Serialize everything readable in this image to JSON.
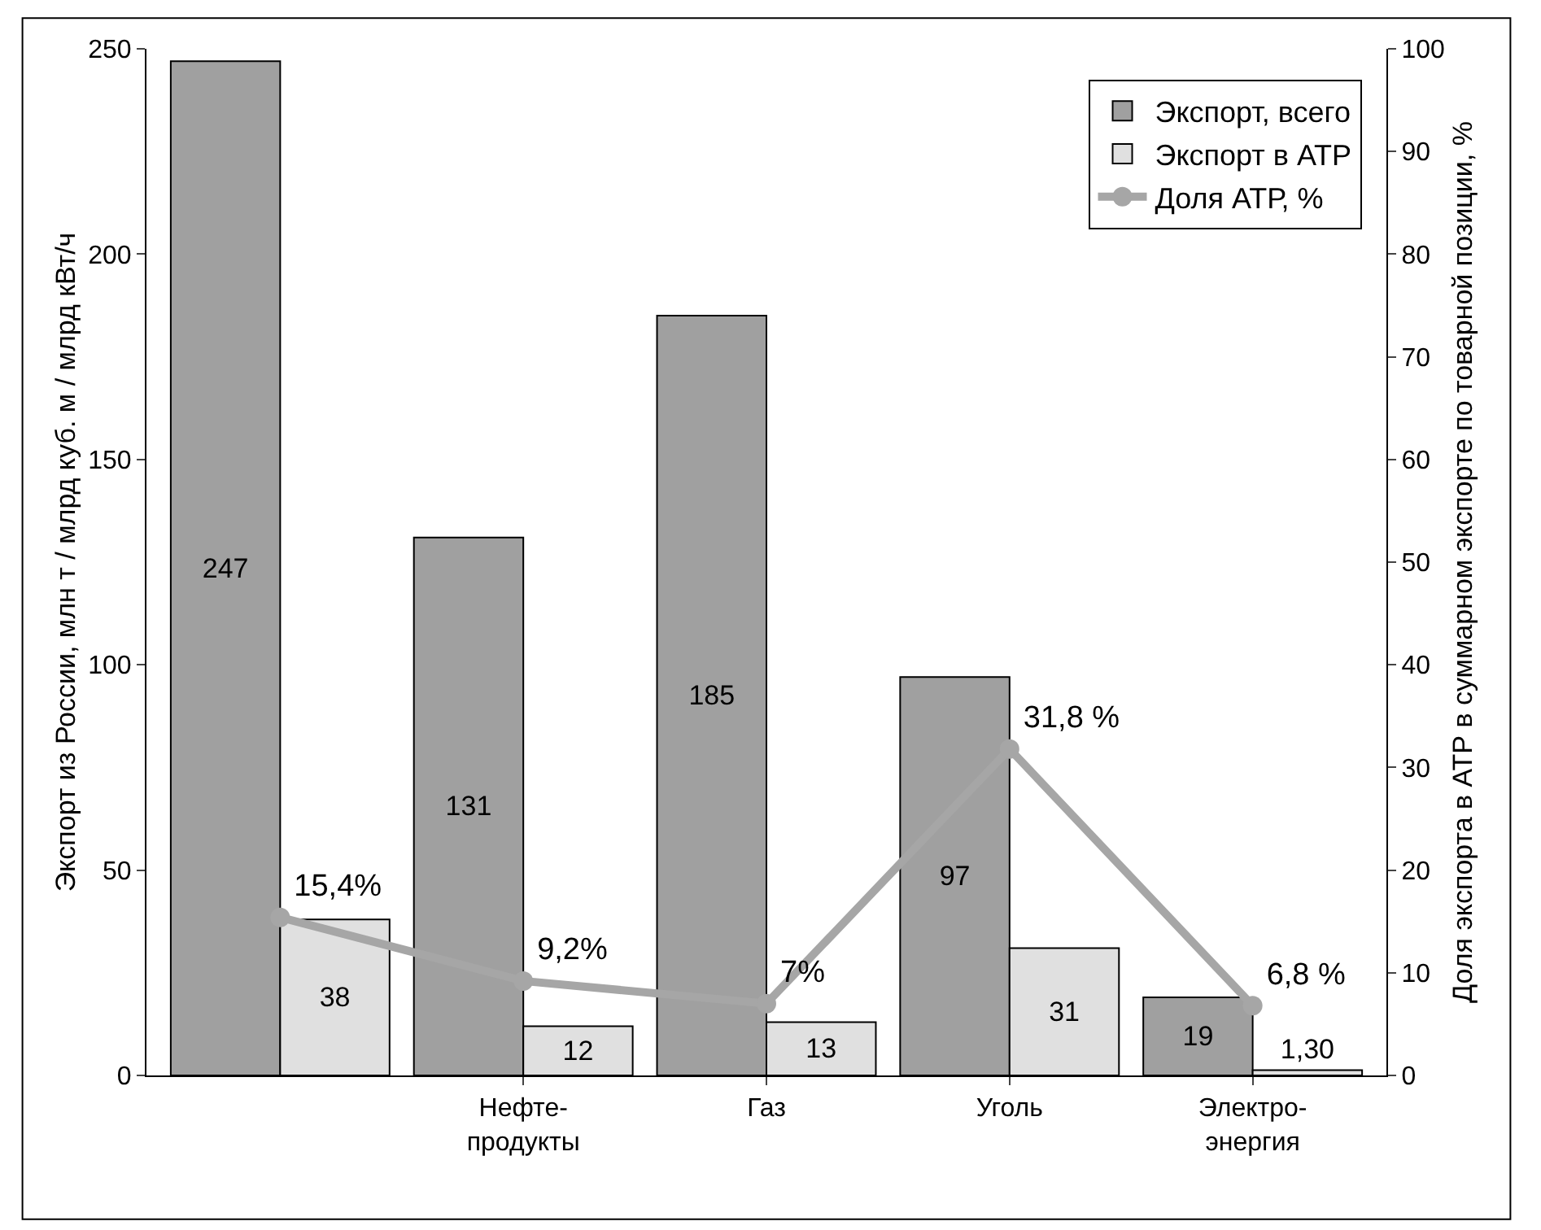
{
  "chart_data": {
    "type": "bar",
    "categories": [
      null,
      "Нефте-\nпродукты",
      "Газ",
      "Уголь",
      "Электро-\nэнергия"
    ],
    "ylabel": "Экспорт из России, млн т / млрд куб. м / млрд кВт/ч",
    "y2label": "Доля экспорта в АТР в суммарном экспорте по товарной позиции, %",
    "series": [
      {
        "name": "Экспорт, всего",
        "color": "#a0a0a0",
        "values": [
          247,
          131,
          185,
          97,
          19
        ],
        "value_labels": [
          "247",
          "131",
          "185",
          "97",
          "19"
        ]
      },
      {
        "name": "Экспорт в АТР",
        "color": "#e0e0e0",
        "values": [
          38,
          12,
          13,
          31,
          1.3
        ],
        "value_labels": [
          "38",
          "12",
          "13",
          "31",
          "1,30"
        ]
      },
      {
        "name": "Доля АТР, %",
        "type": "line",
        "axis": "y2",
        "color": "#a6a6a6",
        "values": [
          15.4,
          9.2,
          7,
          31.8,
          6.8
        ],
        "value_labels": [
          "15,4%",
          "9,2%",
          "7%",
          "31,8 %",
          "6,8 %"
        ]
      }
    ],
    "ylim": [
      0,
      250
    ],
    "yticks": [
      0,
      50,
      100,
      150,
      200,
      250
    ],
    "y2lim": [
      0,
      100
    ],
    "y2ticks": [
      0,
      10,
      20,
      30,
      40,
      50,
      60,
      70,
      80,
      90,
      100
    ],
    "grid": false,
    "legend": "top right",
    "marker": "circle",
    "line_style": "solid"
  }
}
